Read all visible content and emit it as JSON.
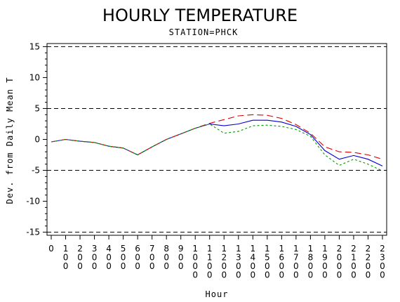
{
  "chart_data": {
    "type": "line",
    "title": "HOURLY TEMPERATURE",
    "subtitle": "STATION=PHCK",
    "xlabel": "Hour",
    "ylabel": "Dev. from Daily Mean T",
    "x_tick_labels": [
      "0",
      "100",
      "200",
      "300",
      "400",
      "500",
      "600",
      "700",
      "800",
      "900",
      "1000",
      "1100",
      "1200",
      "1300",
      "1400",
      "1500",
      "1600",
      "1700",
      "1800",
      "1900",
      "2000",
      "2100",
      "2200",
      "2300"
    ],
    "y_ticks": [
      -15,
      -10,
      -5,
      0,
      5,
      10,
      15
    ],
    "ylim": [
      -15.5,
      15.5
    ],
    "reference_lines": [
      -15,
      -5,
      5,
      15
    ],
    "grid": false,
    "legend": "none",
    "colors": {
      "blue": "#0000cc",
      "red": "#dd0000",
      "green": "#009900",
      "axis": "#000000"
    },
    "series": [
      {
        "color": "#0000cc",
        "dash": "solid",
        "values": [
          -0.4,
          0.0,
          -0.3,
          -0.5,
          -1.1,
          -1.4,
          -2.5,
          -1.2,
          0.0,
          0.9,
          1.8,
          2.5,
          2.2,
          2.5,
          3.1,
          3.1,
          2.8,
          2.1,
          0.8,
          -1.8,
          -3.2,
          -2.6,
          -3.2,
          -4.3
        ]
      },
      {
        "color": "#dd0000",
        "dash": "long",
        "values": [
          -0.4,
          0.0,
          -0.3,
          -0.5,
          -1.1,
          -1.4,
          -2.5,
          -1.2,
          0.0,
          0.9,
          1.8,
          2.6,
          3.2,
          3.8,
          4.0,
          3.9,
          3.4,
          2.4,
          1.0,
          -1.2,
          -2.0,
          -2.1,
          -2.5,
          -3.2
        ]
      },
      {
        "color": "#009900",
        "dash": "short",
        "values": [
          -0.4,
          0.0,
          -0.3,
          -0.5,
          -1.1,
          -1.4,
          -2.5,
          -1.2,
          0.0,
          0.9,
          1.8,
          2.5,
          1.0,
          1.3,
          2.2,
          2.3,
          2.1,
          1.6,
          0.5,
          -2.5,
          -4.2,
          -3.2,
          -4.0,
          -5.1
        ]
      }
    ]
  }
}
